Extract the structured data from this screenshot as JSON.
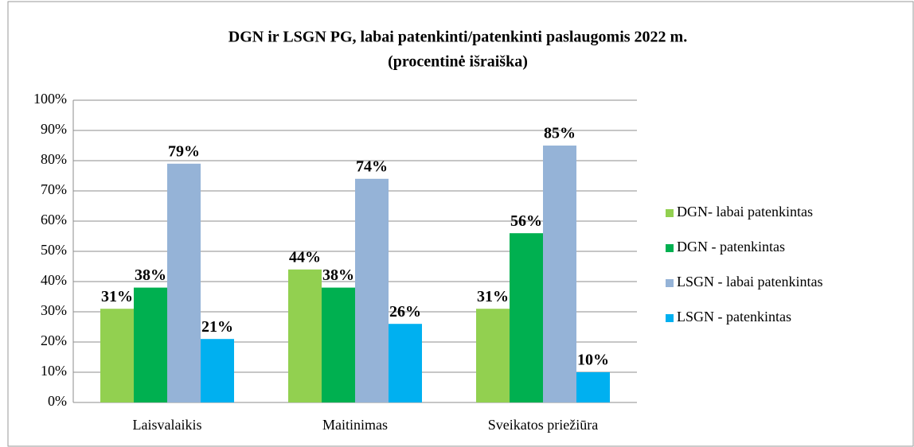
{
  "chart_data": {
    "type": "bar",
    "title": "DGN ir  LSGN PG, labai patenkinti/patenkinti  paslaugomis 2022 m.",
    "subtitle": "(procentinė išraiška)",
    "categories": [
      "Laisvalaikis",
      "Maitinimas",
      "Sveikatos priežiūra"
    ],
    "series": [
      {
        "name": "DGN- labai patenkintas",
        "color": "#92d050",
        "values": [
          31,
          44,
          31
        ],
        "value_labels": [
          "31%",
          "44%",
          "31%"
        ]
      },
      {
        "name": "DGN - patenkintas",
        "color": "#00b050",
        "values": [
          38,
          38,
          56
        ],
        "value_labels": [
          "38%",
          "38%",
          "56%"
        ]
      },
      {
        "name": "LSGN - labai patenkintas",
        "color": "#95b3d7",
        "values": [
          79,
          74,
          85
        ],
        "value_labels": [
          "79%",
          "74%",
          "85%"
        ]
      },
      {
        "name": "LSGN - patenkintas",
        "color": "#00b0f0",
        "values": [
          21,
          26,
          10
        ],
        "value_labels": [
          "21%",
          "26%",
          "10%"
        ]
      }
    ],
    "ylim": [
      0,
      100
    ],
    "yticks": [
      {
        "value": 0,
        "label": "0%"
      },
      {
        "value": 10,
        "label": "10%"
      },
      {
        "value": 20,
        "label": "20%"
      },
      {
        "value": 30,
        "label": "30%"
      },
      {
        "value": 40,
        "label": "40%"
      },
      {
        "value": 50,
        "label": "50%"
      },
      {
        "value": 60,
        "label": "60%"
      },
      {
        "value": 70,
        "label": "70%"
      },
      {
        "value": 80,
        "label": "80%"
      },
      {
        "value": 90,
        "label": "90%"
      },
      {
        "value": 100,
        "label": "100%"
      }
    ],
    "grid": true,
    "legend": "right"
  }
}
